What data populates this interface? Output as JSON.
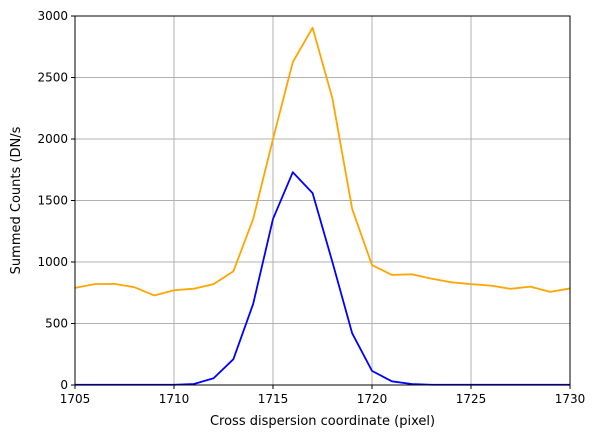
{
  "chart_data": {
    "type": "line",
    "title": "",
    "xlabel": "Cross dispersion coordinate (pixel)",
    "ylabel": "Summed Counts (DN/s",
    "xlim": [
      1705,
      1730
    ],
    "ylim": [
      0,
      3000
    ],
    "xticks": [
      1705,
      1710,
      1715,
      1720,
      1725,
      1730
    ],
    "yticks": [
      0,
      500,
      1000,
      1500,
      2000,
      2500,
      3000
    ],
    "grid": true,
    "legend": "none",
    "series": [
      {
        "color": "#ffa500",
        "x": [
          1705,
          1706,
          1707,
          1708,
          1709,
          1710,
          1711,
          1712,
          1713,
          1714,
          1715,
          1716,
          1717,
          1718,
          1719,
          1720,
          1721,
          1722,
          1723,
          1724,
          1725,
          1726,
          1727,
          1728,
          1729,
          1730
        ],
        "y": [
          790,
          820,
          822,
          795,
          728,
          770,
          783,
          820,
          925,
          1350,
          2000,
          2625,
          2905,
          2330,
          1430,
          975,
          895,
          900,
          865,
          835,
          820,
          808,
          782,
          800,
          757,
          785
        ]
      },
      {
        "color": "#0000ff",
        "x": [
          1705,
          1706,
          1707,
          1708,
          1709,
          1710,
          1711,
          1712,
          1713,
          1714,
          1715,
          1716,
          1717,
          1718,
          1719,
          1720,
          1721,
          1722,
          1723,
          1724,
          1725,
          1726,
          1727,
          1728,
          1729,
          1730
        ],
        "y": [
          2,
          2,
          2,
          2,
          2,
          2,
          8,
          55,
          210,
          660,
          1350,
          1730,
          1560,
          1000,
          420,
          115,
          30,
          8,
          2,
          2,
          2,
          2,
          2,
          2,
          2,
          2
        ]
      }
    ]
  }
}
